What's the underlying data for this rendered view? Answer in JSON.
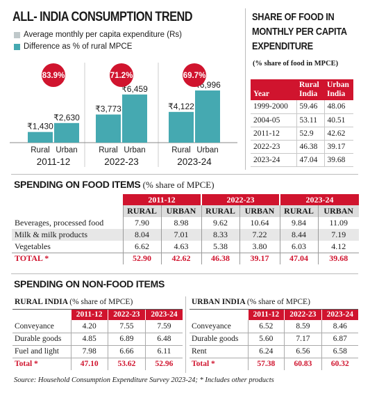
{
  "left_chart": {
    "title": "ALL- INDIA CONSUMPTION TREND",
    "legend": [
      {
        "label": "Average monthly per capita expenditure (Rs)",
        "color": "#bfc8ca"
      },
      {
        "label": "Difference as % of rural MPCE",
        "color": "#45a9b1"
      }
    ]
  },
  "chart_data": {
    "type": "bar",
    "title": "ALL- INDIA CONSUMPTION TREND",
    "categories": [
      "2011-12",
      "2022-23",
      "2023-24"
    ],
    "series": [
      {
        "name": "Rural",
        "values": [
          1430,
          3773,
          4122
        ],
        "labels": [
          "₹1,430",
          "₹3,773",
          "₹4,122"
        ]
      },
      {
        "name": "Urban",
        "values": [
          2630,
          6459,
          6996
        ],
        "labels": [
          "₹2,630",
          "₹6,459",
          "₹6,996"
        ]
      }
    ],
    "difference_pct": [
      "83.9%",
      "71.2%",
      "69.7%"
    ],
    "series_colors": {
      "Rural": "#45a9b1",
      "Urban": "#45a9b1"
    },
    "ylim": [
      0,
      7000
    ]
  },
  "share_table": {
    "title_lines": [
      "SHARE OF FOOD IN",
      "MONTHLY PER CAPITA",
      "EXPENDITURE"
    ],
    "subtitle": "(% share of food in MPCE)",
    "headers": {
      "year": "Year",
      "rural": [
        "Rural",
        "India"
      ],
      "urban": [
        "Urban",
        "India"
      ]
    },
    "rows": [
      {
        "year": "1999-2000",
        "rural": "59.46",
        "urban": "48.06"
      },
      {
        "year": "2004-05",
        "rural": "53.11",
        "urban": "40.51"
      },
      {
        "year": "2011-12",
        "rural": "52.9",
        "urban": "42.62"
      },
      {
        "year": "2022-23",
        "rural": "46.38",
        "urban": "39.17"
      },
      {
        "year": "2023-24",
        "rural": "47.04",
        "urban": "39.68"
      }
    ]
  },
  "food_table": {
    "title": "SPENDING ON FOOD ITEMS",
    "subtitle": "(% share of MPCE)",
    "years": [
      "2011-12",
      "2022-23",
      "2023-24"
    ],
    "sub_headers": [
      "RURAL",
      "URBAN"
    ],
    "rows": [
      {
        "item": "Beverages, processed food",
        "values": [
          "7.90",
          "8.98",
          "9.62",
          "10.64",
          "9.84",
          "11.09"
        ]
      },
      {
        "item": "Milk & milk products",
        "values": [
          "8.04",
          "7.01",
          "8.33",
          "7.22",
          "8.44",
          "7.19"
        ]
      },
      {
        "item": "Vegetables",
        "values": [
          "6.62",
          "4.63",
          "5.38",
          "3.80",
          "6.03",
          "4.12"
        ]
      }
    ],
    "total": {
      "item": "TOTAL *",
      "values": [
        "52.90",
        "42.62",
        "46.38",
        "39.17",
        "47.04",
        "39.68"
      ]
    }
  },
  "nonfood": {
    "title": "SPENDING ON NON-FOOD ITEMS",
    "years": [
      "2011-12",
      "2022-23",
      "2023-24"
    ],
    "rural": {
      "caption": "RURAL INDIA",
      "caption_note": "(% share of MPCE)",
      "rows": [
        {
          "item": "Conveyance",
          "values": [
            "4.20",
            "7.55",
            "7.59"
          ]
        },
        {
          "item": "Durable goods",
          "values": [
            "4.85",
            "6.89",
            "6.48"
          ]
        },
        {
          "item": "Fuel and light",
          "values": [
            "7.98",
            "6.66",
            "6.11"
          ]
        }
      ],
      "total": {
        "item": "Total *",
        "values": [
          "47.10",
          "53.62",
          "52.96"
        ]
      }
    },
    "urban": {
      "caption": "URBAN INDIA",
      "caption_note": "(% share of MPCE)",
      "rows": [
        {
          "item": "Conveyance",
          "values": [
            "6.52",
            "8.59",
            "8.46"
          ]
        },
        {
          "item": "Durable goods",
          "values": [
            "5.60",
            "7.17",
            "6.87"
          ]
        },
        {
          "item": "Rent",
          "values": [
            "6.24",
            "6.56",
            "6.58"
          ]
        }
      ],
      "total": {
        "item": "Total *",
        "values": [
          "57.38",
          "60.83",
          "60.32"
        ]
      }
    }
  },
  "source": "Source: Household Consumption Expenditure Survey 2023-24; * Includes other products"
}
